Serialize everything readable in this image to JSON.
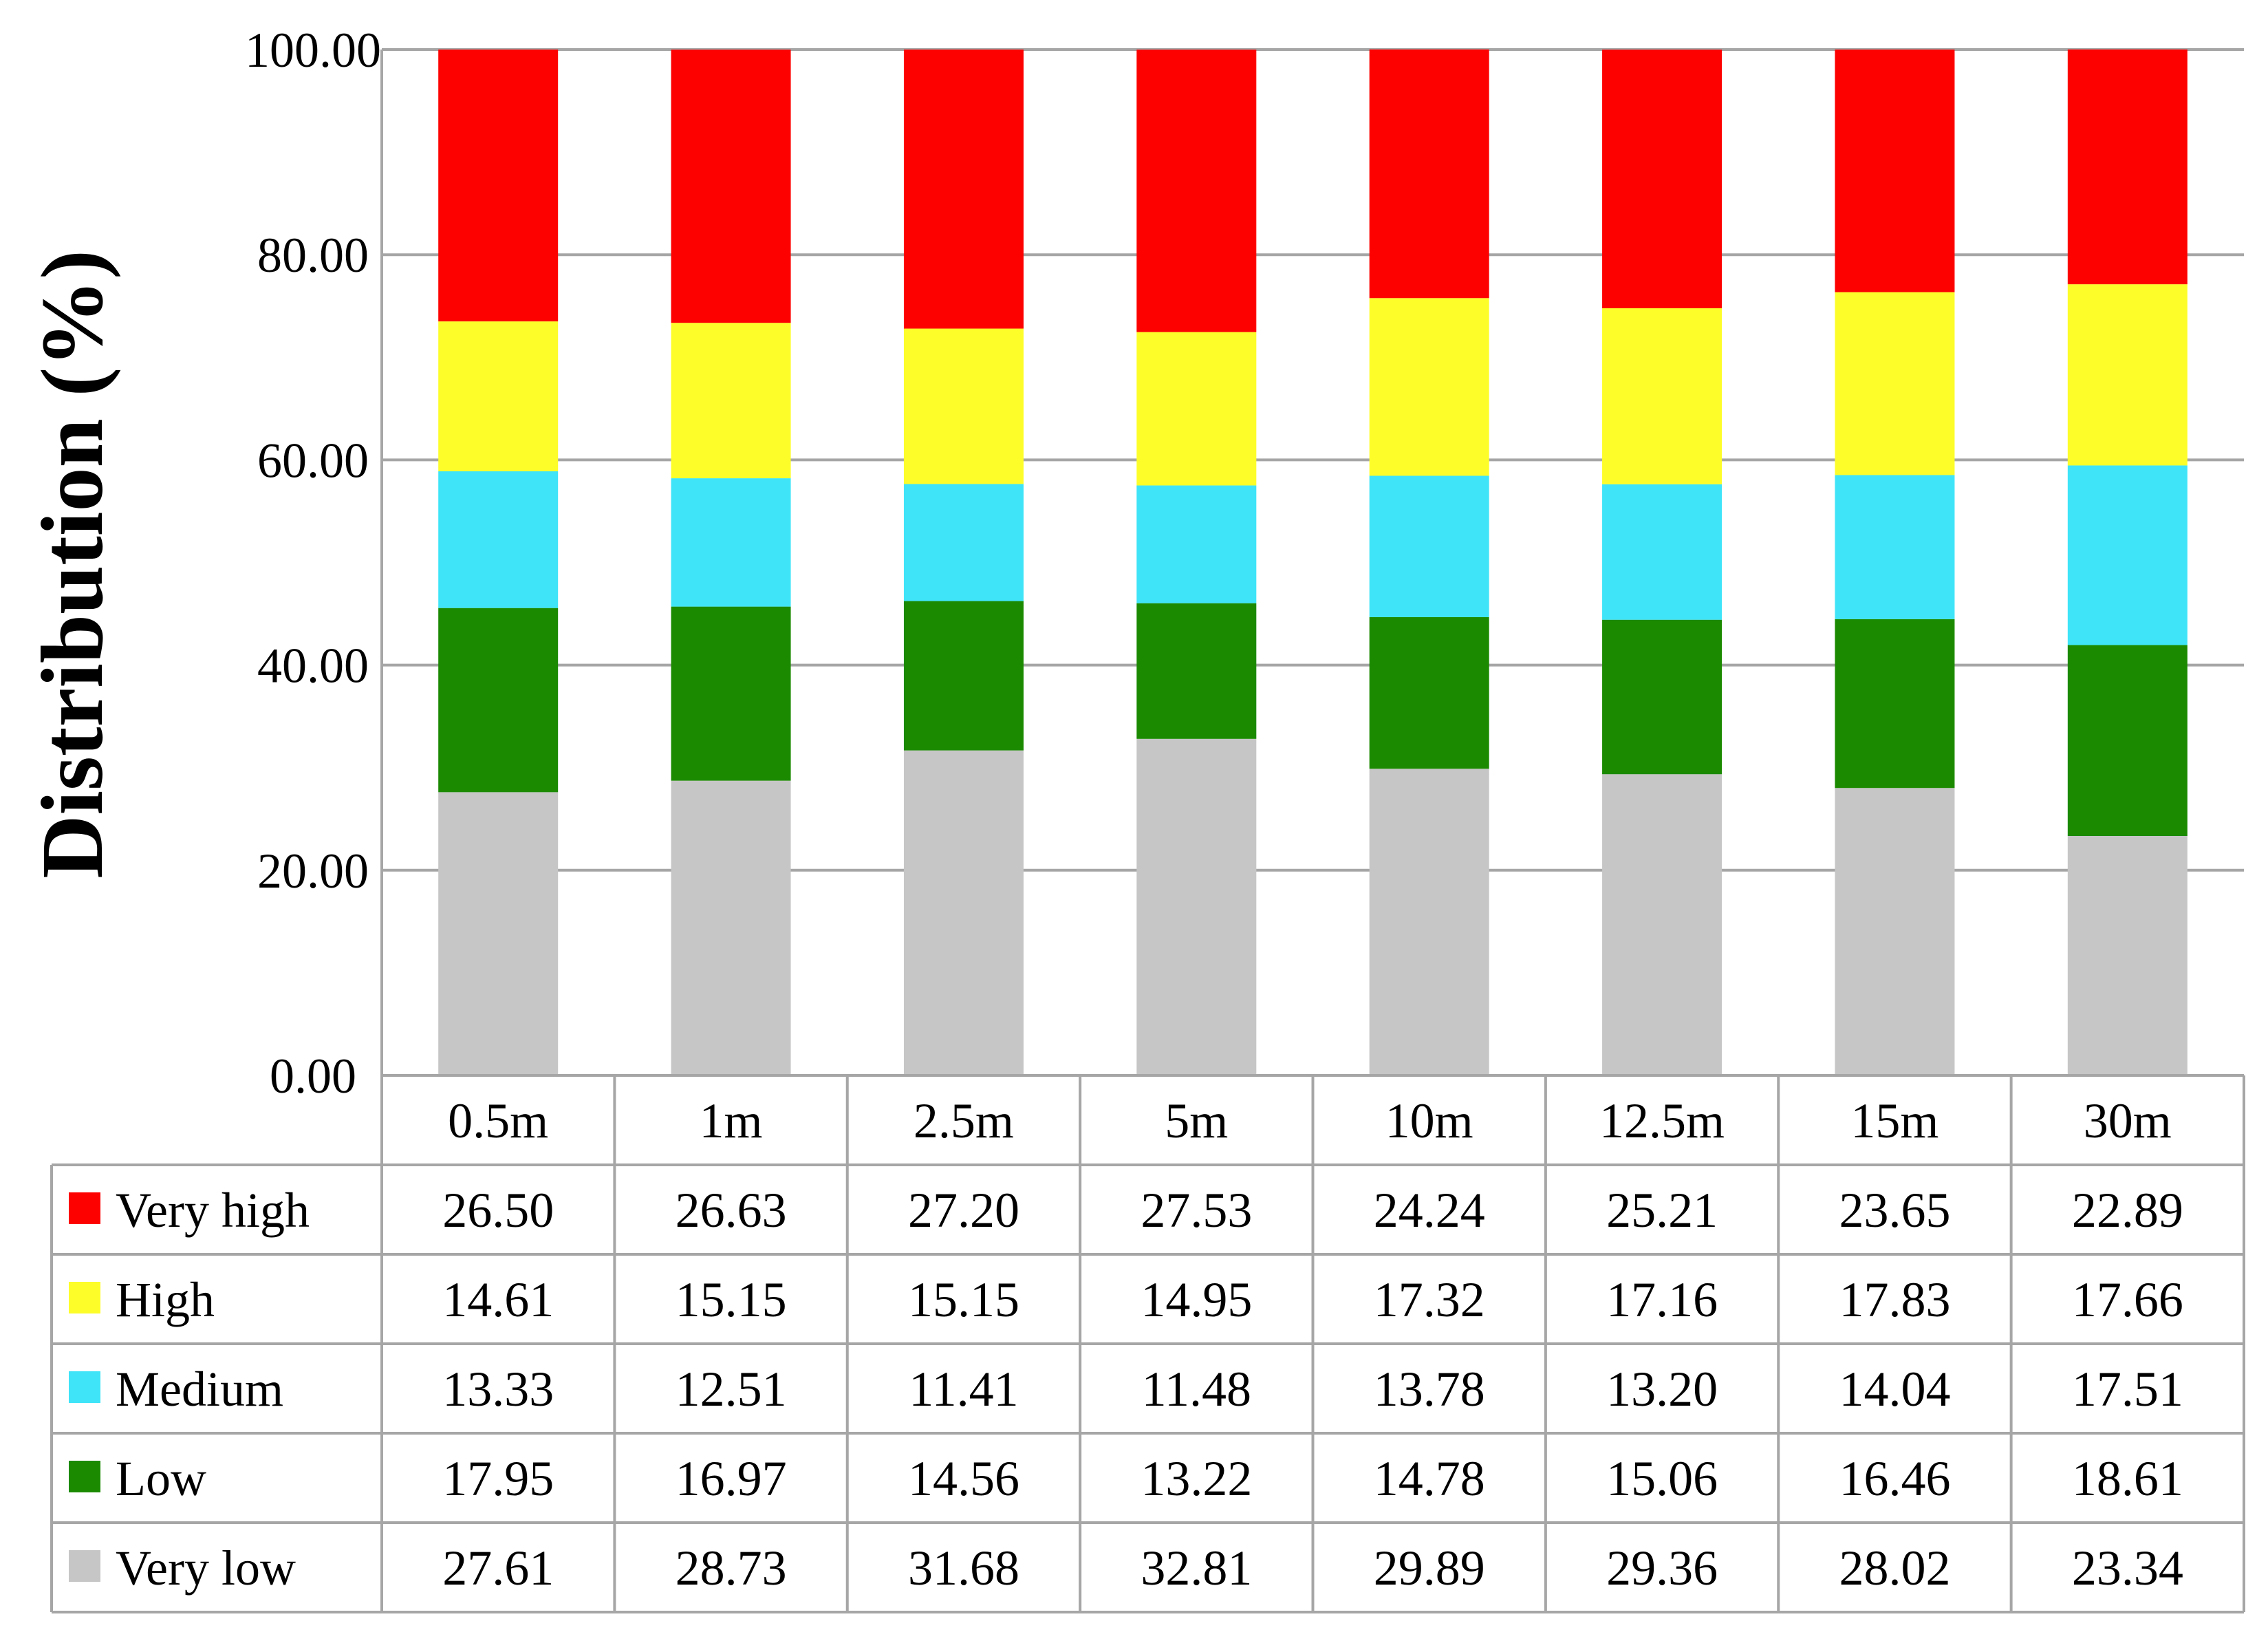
{
  "chart_data": {
    "type": "bar",
    "stacked": true,
    "ylabel": "Distribution (%)",
    "xlabel": "",
    "ylim": [
      0,
      100
    ],
    "yticks": [
      "0.00",
      "20.00",
      "40.00",
      "60.00",
      "80.00",
      "100.00"
    ],
    "grid": true,
    "legend": "data-table-rows",
    "categories": [
      "0.5m",
      "1m",
      "2.5m",
      "5m",
      "10m",
      "12.5m",
      "15m",
      "30m"
    ],
    "series": [
      {
        "name": "Very low",
        "color": "#c6c6c6",
        "values": [
          27.61,
          28.73,
          31.68,
          32.81,
          29.89,
          29.36,
          28.02,
          23.34
        ]
      },
      {
        "name": "Low",
        "color": "#1b8a00",
        "values": [
          17.95,
          16.97,
          14.56,
          13.22,
          14.78,
          15.06,
          16.46,
          18.61
        ]
      },
      {
        "name": "Medium",
        "color": "#3fe4f8",
        "values": [
          13.33,
          12.51,
          11.41,
          11.48,
          13.78,
          13.2,
          14.04,
          17.51
        ]
      },
      {
        "name": "High",
        "color": "#fdfd2a",
        "values": [
          14.61,
          15.15,
          15.15,
          14.95,
          17.32,
          17.16,
          17.83,
          17.66
        ]
      },
      {
        "name": "Very high",
        "color": "#fd0000",
        "values": [
          26.5,
          26.63,
          27.2,
          27.53,
          24.24,
          25.21,
          23.65,
          22.89
        ]
      }
    ],
    "table_row_order": [
      "Very high",
      "High",
      "Medium",
      "Low",
      "Very low"
    ]
  }
}
